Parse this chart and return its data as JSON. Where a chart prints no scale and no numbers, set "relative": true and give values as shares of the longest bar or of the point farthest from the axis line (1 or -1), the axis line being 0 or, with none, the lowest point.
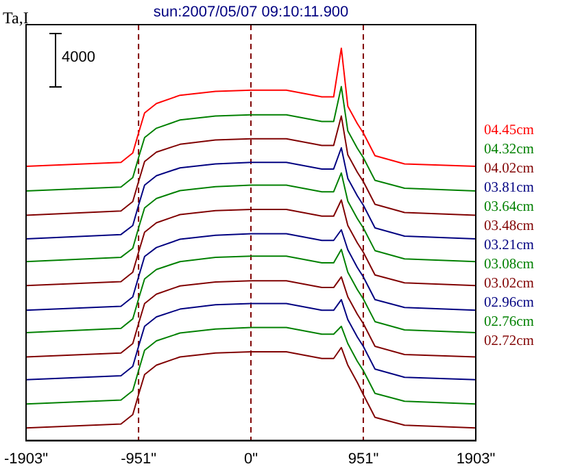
{
  "chart_data": {
    "type": "line",
    "title": "sun:2007/05/07 09:10:11.900",
    "ylabel": "Ta,I",
    "relative": true,
    "annotations": [
      "4000"
    ],
    "x": [
      -1903,
      -1100,
      -1000,
      -951,
      -900,
      -800,
      -600,
      -300,
      0,
      300,
      600,
      700,
      765,
      820,
      900,
      951,
      1050,
      1300,
      1903
    ],
    "xlim": [
      -1903,
      1903
    ],
    "xticks": [
      {
        "value": -1903,
        "label": "-1903\""
      },
      {
        "value": -951,
        "label": "-951\""
      },
      {
        "value": 0,
        "label": "0\""
      },
      {
        "value": 951,
        "label": "951\""
      },
      {
        "value": 1903,
        "label": "1903\""
      }
    ],
    "grid": false,
    "legend": "right",
    "marker": "none",
    "line_style": "solid",
    "tick_labels": "x",
    "ref_lines": [
      {
        "axis": "x",
        "value": -951,
        "color": "#800000",
        "line_style": "dashed"
      },
      {
        "axis": "x",
        "value": 0,
        "color": "#800000",
        "line_style": "dashed"
      },
      {
        "axis": "x",
        "value": 951,
        "color": "#800000",
        "line_style": "dashed"
      }
    ],
    "series": [
      {
        "name": "04.45cm",
        "color": "#ff0000",
        "values": [
          0.699,
          0.709,
          0.733,
          0.784,
          0.835,
          0.859,
          0.88,
          0.89,
          0.893,
          0.893,
          0.876,
          0.876,
          1,
          0.852,
          0.808,
          0.784,
          0.726,
          0.705,
          0.699
        ]
      },
      {
        "name": "04.32cm",
        "color": "#008000",
        "values": [
          0.636,
          0.646,
          0.67,
          0.721,
          0.772,
          0.796,
          0.817,
          0.827,
          0.83,
          0.83,
          0.813,
          0.813,
          0.902,
          0.789,
          0.745,
          0.721,
          0.663,
          0.643,
          0.636
        ]
      },
      {
        "name": "04.02cm",
        "color": "#800000",
        "values": [
          0.574,
          0.585,
          0.609,
          0.66,
          0.711,
          0.735,
          0.755,
          0.766,
          0.769,
          0.769,
          0.752,
          0.752,
          0.827,
          0.728,
          0.684,
          0.66,
          0.602,
          0.581,
          0.574
        ]
      },
      {
        "name": "03.81cm",
        "color": "#000080",
        "values": [
          0.514,
          0.525,
          0.548,
          0.6,
          0.651,
          0.675,
          0.695,
          0.705,
          0.709,
          0.709,
          0.692,
          0.692,
          0.746,
          0.668,
          0.624,
          0.6,
          0.542,
          0.521,
          0.514
        ]
      },
      {
        "name": "03.64cm",
        "color": "#008000",
        "values": [
          0.456,
          0.467,
          0.49,
          0.542,
          0.593,
          0.617,
          0.637,
          0.647,
          0.651,
          0.651,
          0.634,
          0.634,
          0.682,
          0.61,
          0.566,
          0.542,
          0.484,
          0.463,
          0.456
        ]
      },
      {
        "name": "03.48cm",
        "color": "#800000",
        "values": [
          0.395,
          0.405,
          0.429,
          0.48,
          0.531,
          0.555,
          0.576,
          0.586,
          0.589,
          0.589,
          0.572,
          0.572,
          0.613,
          0.548,
          0.504,
          0.48,
          0.422,
          0.402,
          0.395
        ]
      },
      {
        "name": "03.21cm",
        "color": "#000080",
        "values": [
          0.332,
          0.342,
          0.366,
          0.417,
          0.469,
          0.492,
          0.513,
          0.523,
          0.527,
          0.527,
          0.51,
          0.51,
          0.537,
          0.486,
          0.441,
          0.417,
          0.359,
          0.339,
          0.332
        ]
      },
      {
        "name": "03.08cm",
        "color": "#008000",
        "values": [
          0.275,
          0.286,
          0.31,
          0.361,
          0.412,
          0.436,
          0.456,
          0.467,
          0.47,
          0.47,
          0.453,
          0.453,
          0.487,
          0.429,
          0.385,
          0.361,
          0.303,
          0.282,
          0.275
        ]
      },
      {
        "name": "03.02cm",
        "color": "#800000",
        "values": [
          0.213,
          0.223,
          0.247,
          0.298,
          0.349,
          0.373,
          0.394,
          0.404,
          0.407,
          0.407,
          0.39,
          0.39,
          0.417,
          0.366,
          0.322,
          0.298,
          0.24,
          0.219,
          0.213
        ]
      },
      {
        "name": "02.96cm",
        "color": "#000080",
        "values": [
          0.155,
          0.165,
          0.189,
          0.24,
          0.291,
          0.315,
          0.335,
          0.346,
          0.349,
          0.349,
          0.332,
          0.332,
          0.359,
          0.308,
          0.264,
          0.24,
          0.182,
          0.161,
          0.155
        ]
      },
      {
        "name": "02.76cm",
        "color": "#008000",
        "values": [
          0.093,
          0.103,
          0.127,
          0.178,
          0.23,
          0.254,
          0.274,
          0.284,
          0.288,
          0.288,
          0.271,
          0.271,
          0.291,
          0.247,
          0.202,
          0.178,
          0.12,
          0.1,
          0.093
        ]
      },
      {
        "name": "02.72cm",
        "color": "#800000",
        "values": [
          0.032,
          0.042,
          0.066,
          0.117,
          0.168,
          0.192,
          0.213,
          0.223,
          0.226,
          0.226,
          0.209,
          0.209,
          0.237,
          0.192,
          0.148,
          0.117,
          0.059,
          0.039,
          0.032
        ]
      }
    ]
  }
}
